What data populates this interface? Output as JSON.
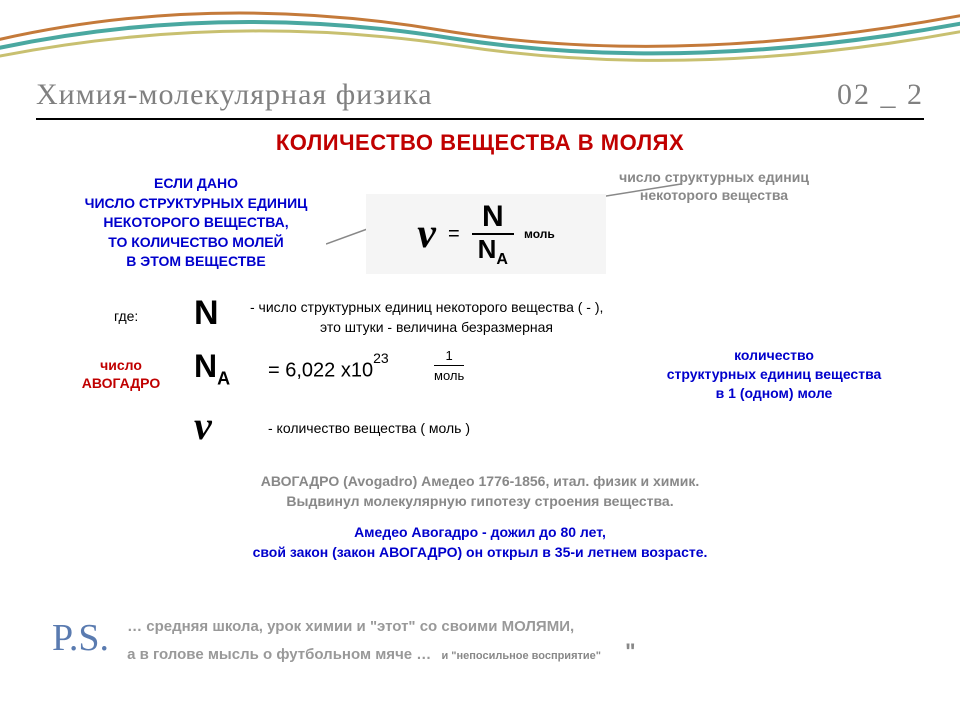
{
  "header": {
    "title": "Химия-молекулярная физика",
    "num": "02 _ 2"
  },
  "title": "КОЛИЧЕСТВО ВЕЩЕСТВА В МОЛЯХ",
  "intro_blue": "ЕСЛИ  ДАНО\nЧИСЛО СТРУКТУРНЫХ ЕДИНИЦ\nНЕКОТОРОГО  ВЕЩЕСТВА,\nТО  КОЛИЧЕСТВО  МОЛЕЙ\nВ ЭТОМ   ВЕЩЕСТВЕ",
  "gray_annot": "число структурных единиц некоторого вещества",
  "formula": {
    "nu": "ν",
    "eq": "=",
    "top": "N",
    "bot": "N",
    "bot_sub": "A",
    "unit": "моль"
  },
  "where": "где:",
  "n_sym": "N",
  "n_desc1": "- число структурных единиц  некоторого вещества    ( - ),",
  "n_desc2": "это штуки - величина безразмерная",
  "avog_label": "число АВОГАДРО",
  "na_sym": "N",
  "na_sub": "A",
  "na_eq": "=  6,022 x10",
  "na_exp": "23",
  "small_frac_top": "1",
  "small_frac_bot": "моль",
  "blue_right": "количество\nструктурных единиц вещества\nв 1 (одном)  моле",
  "nu_desc": "-  количество вещества   ( моль )",
  "bio1a": "АВОГАДРО (Avogadro) Амедео 1776-1856, итал. физик и химик.",
  "bio1b": "Выдвинул молекулярную гипотезу строения вещества.",
  "bio2a": "Амедео Авогадро - дожил до 80 лет,",
  "bio2b": "свой закон (закон АВОГАДРО) он открыл в 35-и летнем возрасте.",
  "ps": "P.S.",
  "ps_text1": "… средняя  школа, урок химии и \"этот\" со своими МОЛЯМИ,",
  "ps_text2": "а в голове мысль о футбольном мяче …",
  "ps_tail": "и \"непосильное восприятие\"",
  "colors": {
    "red": "#c00000",
    "blue": "#0000cc",
    "gray": "#888888",
    "header_gray": "#808080",
    "ps_blue": "#5a7bb0"
  }
}
